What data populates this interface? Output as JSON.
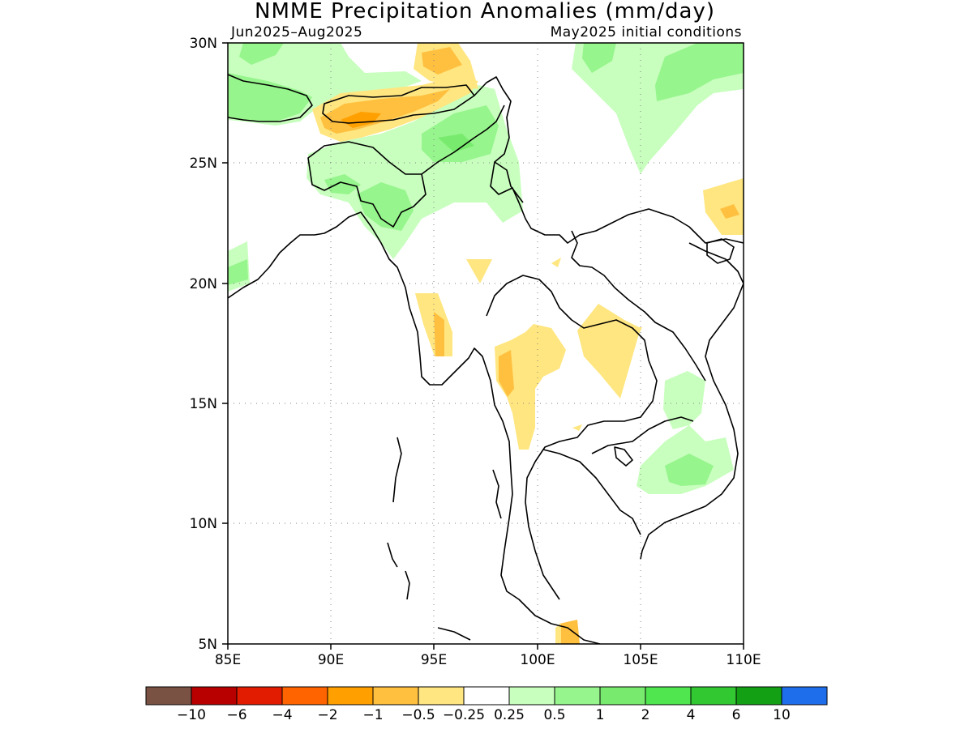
{
  "title": "NMME Precipitation Anomalies (mm/day)",
  "period": "Jun2025–Aug2025",
  "initial_conditions": "May2025 initial conditions",
  "lat_labels": [
    "30N",
    "25N",
    "20N",
    "15N",
    "10N",
    "5N"
  ],
  "lon_labels": [
    "85E",
    "90E",
    "95E",
    "100E",
    "105E",
    "110E"
  ],
  "lat_values": [
    30,
    25,
    20,
    15,
    10,
    5
  ],
  "lon_values": [
    85,
    90,
    95,
    100,
    105,
    110
  ],
  "colorbar": {
    "colors": [
      "#7a5244",
      "#b90000",
      "#e21c00",
      "#ff6400",
      "#ffa000",
      "#ffc040",
      "#ffe680",
      "#ffffff",
      "#c8ffbe",
      "#96f58c",
      "#78eb6e",
      "#50e650",
      "#32c832",
      "#14a014",
      "#1e6eeb"
    ],
    "labels": [
      "−10",
      "−6",
      "−4",
      "−2",
      "−1",
      "−0.5",
      "−0.25",
      "0.25",
      "0.5",
      "1",
      "2",
      "4",
      "6",
      "10"
    ]
  }
}
